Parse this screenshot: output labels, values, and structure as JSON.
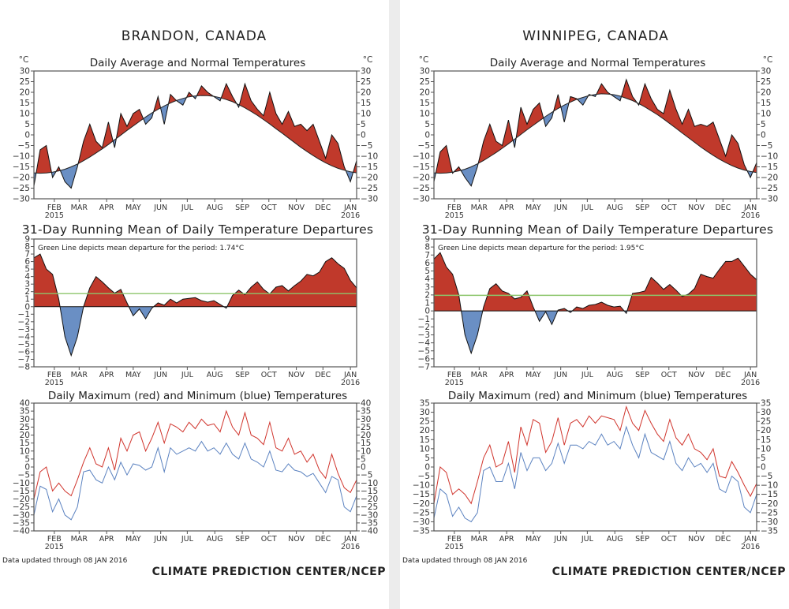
{
  "panels": [
    {
      "city": "BRANDON, CANADA",
      "unit": "°C",
      "updated": "Data updated through 08 JAN 2016",
      "credit": "CLIMATE PREDICTION CENTER/NCEP"
    },
    {
      "city": "WINNIPEG, CANADA",
      "unit": "°C",
      "updated": "Data updated through 08 JAN 2016",
      "credit": "CLIMATE PREDICTION CENTER/NCEP"
    }
  ],
  "colors": {
    "above": "#c0392b",
    "below": "#6a8fc4",
    "max_line": "#d0342c",
    "min_line": "#5b82c0",
    "mean_line": "#8cc56b",
    "axis": "#555555"
  },
  "x_ticks": [
    {
      "date": "2015-02-01",
      "label": "FEB",
      "year": "2015"
    },
    {
      "date": "2015-03-01",
      "label": "MAR"
    },
    {
      "date": "2015-04-01",
      "label": "APR"
    },
    {
      "date": "2015-05-01",
      "label": "MAY"
    },
    {
      "date": "2015-06-01",
      "label": "JUN"
    },
    {
      "date": "2015-07-01",
      "label": "JUL"
    },
    {
      "date": "2015-08-01",
      "label": "AUG"
    },
    {
      "date": "2015-09-01",
      "label": "SEP"
    },
    {
      "date": "2015-10-01",
      "label": "OCT"
    },
    {
      "date": "2015-11-01",
      "label": "NOV"
    },
    {
      "date": "2015-12-01",
      "label": "DEC"
    },
    {
      "date": "2016-01-01",
      "label": "JAN",
      "year": "2016"
    }
  ],
  "dates": [
    "2015-01-09",
    "2015-01-16",
    "2015-01-23",
    "2015-01-30",
    "2015-02-06",
    "2015-02-13",
    "2015-02-20",
    "2015-02-27",
    "2015-03-06",
    "2015-03-13",
    "2015-03-20",
    "2015-03-27",
    "2015-04-03",
    "2015-04-10",
    "2015-04-17",
    "2015-04-24",
    "2015-05-01",
    "2015-05-08",
    "2015-05-15",
    "2015-05-22",
    "2015-05-29",
    "2015-06-05",
    "2015-06-12",
    "2015-06-19",
    "2015-06-26",
    "2015-07-03",
    "2015-07-10",
    "2015-07-17",
    "2015-07-24",
    "2015-07-31",
    "2015-08-07",
    "2015-08-14",
    "2015-08-21",
    "2015-08-28",
    "2015-09-04",
    "2015-09-11",
    "2015-09-18",
    "2015-09-25",
    "2015-10-02",
    "2015-10-09",
    "2015-10-16",
    "2015-10-23",
    "2015-10-30",
    "2015-11-06",
    "2015-11-13",
    "2015-11-20",
    "2015-11-27",
    "2015-12-04",
    "2015-12-11",
    "2015-12-18",
    "2015-12-25",
    "2016-01-01",
    "2016-01-08"
  ],
  "chart_data": [
    {
      "type": "area",
      "title": "Daily Average and Normal Temperatures",
      "ylabel": "°C",
      "ylim": [
        -30,
        30
      ],
      "ytick_step": 5,
      "right_axis": true,
      "grid": false,
      "series": [
        {
          "id": "daily_average",
          "values": [
            -24,
            -7,
            -5,
            -20,
            -15,
            -22,
            -25,
            -15,
            -3,
            5,
            -3,
            -6,
            6,
            -6,
            10,
            4,
            10,
            12,
            5,
            8,
            18,
            5,
            19,
            16,
            14,
            20,
            17,
            23,
            20,
            18,
            16,
            24,
            18,
            13,
            24,
            16,
            12,
            9,
            20,
            10,
            5,
            11,
            4,
            5,
            2,
            5,
            -3,
            -11,
            0,
            -4,
            -15,
            -22,
            -12
          ]
        },
        {
          "id": "normal",
          "values": [
            -17.8,
            -18,
            -17.9,
            -17.5,
            -16.9,
            -16.1,
            -15,
            -13.7,
            -12.1,
            -10.4,
            -8.5,
            -6.6,
            -4.5,
            -2.3,
            -0.1,
            2.1,
            4.2,
            6.3,
            8.4,
            10.3,
            12,
            13.6,
            15,
            16.2,
            17.1,
            17.9,
            18.3,
            18.5,
            18.4,
            18.1,
            17.5,
            16.6,
            15.6,
            14.2,
            12.7,
            11,
            9.2,
            7.2,
            5.1,
            2.9,
            0.8,
            -1.4,
            -3.6,
            -5.8,
            -7.8,
            -9.7,
            -11.5,
            -13.1,
            -14.5,
            -15.7,
            -16.6,
            -17.3,
            -17.8
          ]
        }
      ]
    },
    {
      "type": "area",
      "title": "31-Day Running Mean of Daily Temperature Departures",
      "ylim": [
        -8,
        9
      ],
      "ytick_step": 1,
      "right_axis": false,
      "grid": false,
      "mean_departure": 1.74,
      "annotation": "Green Line depicts mean departure for the period: 1.74°C",
      "series": [
        {
          "id": "departure",
          "values": [
            6.5,
            7,
            5,
            4.3,
            1,
            -4,
            -6.5,
            -4,
            0,
            2.5,
            4,
            3.3,
            2.5,
            1.8,
            2.3,
            0.5,
            -1.2,
            -0.3,
            -1.6,
            -0.2,
            0.5,
            0.2,
            1,
            0.5,
            1,
            1.1,
            1.2,
            0.8,
            0.6,
            0.8,
            0.3,
            -0.2,
            1.5,
            2.2,
            1.6,
            2.6,
            3.3,
            2.3,
            1.7,
            2.6,
            2.8,
            2.1,
            2.8,
            3.4,
            4.3,
            4.1,
            4.6,
            6,
            6.5,
            5.7,
            5.1,
            3.5,
            2.5
          ]
        }
      ]
    },
    {
      "type": "line",
      "title": "Daily Maximum (red) and Minimum (blue) Temperatures",
      "ylim": [
        -40,
        40
      ],
      "ytick_step": 5,
      "right_axis": true,
      "grid": false,
      "series": [
        {
          "id": "maximum",
          "values": [
            -20,
            -3,
            0,
            -15,
            -10,
            -15,
            -18,
            -8,
            3,
            12,
            2,
            0,
            12,
            -2,
            18,
            10,
            20,
            22,
            10,
            18,
            28,
            15,
            27,
            25,
            22,
            28,
            24,
            30,
            26,
            27,
            22,
            35,
            25,
            20,
            34,
            20,
            18,
            14,
            28,
            12,
            10,
            18,
            8,
            10,
            3,
            8,
            -2,
            -7,
            8,
            -4,
            -13,
            -16,
            -8
          ]
        },
        {
          "id": "minimum",
          "values": [
            -30,
            -12,
            -14,
            -28,
            -20,
            -30,
            -33,
            -25,
            -3,
            -2,
            -8,
            -10,
            0,
            -8,
            3,
            -5,
            2,
            1,
            -2,
            0,
            12,
            -3,
            12,
            8,
            10,
            12,
            10,
            16,
            10,
            12,
            8,
            15,
            8,
            5,
            15,
            5,
            3,
            0,
            10,
            -2,
            -3,
            2,
            -2,
            -3,
            -6,
            -4,
            -10,
            -16,
            -6,
            -8,
            -25,
            -28,
            -18
          ]
        }
      ]
    },
    {
      "type": "area",
      "title": "Daily Average and Normal Temperatures",
      "ylabel": "°C",
      "ylim": [
        -30,
        30
      ],
      "ytick_step": 5,
      "right_axis": true,
      "grid": false,
      "series": [
        {
          "id": "daily_average",
          "values": [
            -22,
            -8,
            -5,
            -18,
            -15,
            -20,
            -24,
            -15,
            -3,
            5,
            -3,
            -5,
            7,
            -6,
            13,
            5,
            12,
            15,
            4,
            8,
            19,
            6,
            18,
            17,
            14,
            19,
            18,
            24,
            20,
            18,
            16,
            26,
            18,
            14,
            24,
            17,
            12,
            10,
            21,
            12,
            5,
            12,
            4,
            5,
            4,
            6,
            -2,
            -10,
            0,
            -4,
            -14,
            -20,
            -13
          ]
        },
        {
          "id": "normal",
          "values": [
            -17.8,
            -18,
            -17.9,
            -17.5,
            -16.9,
            -16.1,
            -15,
            -13.6,
            -12,
            -10.2,
            -8.3,
            -6.3,
            -4.2,
            -2,
            0.2,
            2.4,
            4.5,
            6.6,
            8.7,
            10.6,
            12.4,
            14,
            15.4,
            16.7,
            17.6,
            18.5,
            19,
            19.3,
            19.2,
            18.9,
            18.2,
            17.2,
            16.1,
            14.7,
            13.1,
            11.3,
            9.5,
            7.5,
            5.3,
            3.1,
            0.9,
            -1.3,
            -3.5,
            -5.7,
            -7.7,
            -9.6,
            -11.4,
            -13,
            -14.4,
            -15.6,
            -16.5,
            -17.2,
            -17.7
          ]
        }
      ]
    },
    {
      "type": "area",
      "title": "31-Day Running Mean of Daily Temperature Departures",
      "ylim": [
        -7,
        9
      ],
      "ytick_step": 1,
      "right_axis": false,
      "grid": false,
      "mean_departure": 1.95,
      "annotation": "Green Line depicts mean departure for the period: 1.95°C",
      "series": [
        {
          "id": "departure",
          "values": [
            6.5,
            7.3,
            5.5,
            4.6,
            2,
            -3,
            -5.3,
            -3,
            0.5,
            2.8,
            3.4,
            2.5,
            2.2,
            1.5,
            1.7,
            2.5,
            0.5,
            -1.3,
            -0.1,
            -1.7,
            0.1,
            0.3,
            -0.2,
            0.5,
            0.3,
            0.7,
            0.8,
            1.1,
            0.7,
            0.5,
            0.6,
            -0.3,
            2.2,
            2.3,
            2.5,
            4.2,
            3.5,
            2.7,
            3.3,
            2.6,
            1.8,
            2.1,
            2.8,
            4.6,
            4.3,
            4.1,
            5.2,
            6.2,
            6.2,
            6.6,
            5.6,
            4.6,
            3.9
          ]
        }
      ]
    },
    {
      "type": "line",
      "title": "Daily Maximum (red) and Minimum (blue) Temperatures",
      "ylim": [
        -35,
        35
      ],
      "ytick_step": 5,
      "right_axis": true,
      "grid": false,
      "series": [
        {
          "id": "maximum",
          "values": [
            -20,
            0,
            -3,
            -15,
            -12,
            -15,
            -20,
            -8,
            5,
            12,
            0,
            2,
            14,
            -3,
            22,
            12,
            26,
            24,
            8,
            14,
            27,
            12,
            24,
            26,
            22,
            28,
            24,
            28,
            27,
            26,
            20,
            33,
            24,
            20,
            31,
            24,
            18,
            14,
            26,
            16,
            12,
            18,
            10,
            8,
            4,
            10,
            -5,
            -6,
            3,
            -3,
            -10,
            -16,
            -9
          ]
        },
        {
          "id": "minimum",
          "values": [
            -28,
            -12,
            -15,
            -27,
            -22,
            -28,
            -30,
            -25,
            -2,
            0,
            -8,
            -8,
            2,
            -12,
            8,
            -2,
            5,
            5,
            -2,
            2,
            13,
            2,
            12,
            12,
            10,
            14,
            12,
            18,
            12,
            14,
            10,
            22,
            12,
            5,
            18,
            8,
            6,
            4,
            14,
            2,
            -2,
            5,
            0,
            2,
            -3,
            2,
            -12,
            -14,
            -5,
            -8,
            -22,
            -25,
            -15
          ]
        }
      ]
    }
  ]
}
